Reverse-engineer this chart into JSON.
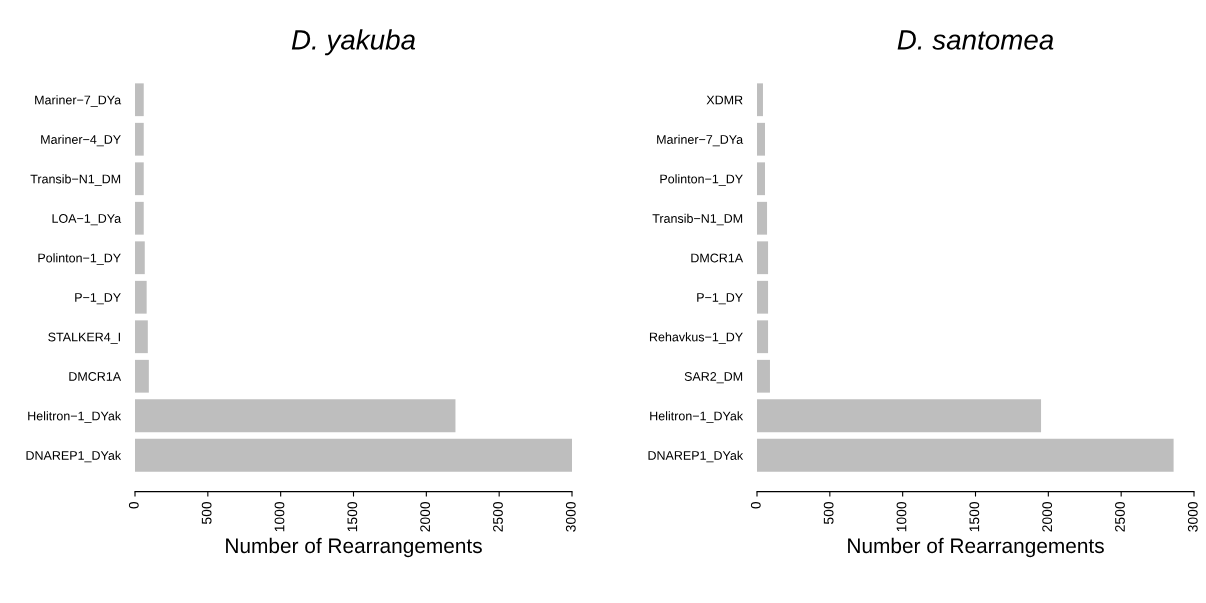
{
  "chart_data": [
    {
      "type": "bar",
      "orientation": "horizontal",
      "title": "D. yakuba",
      "xlabel": "Number of Rearrangements",
      "categories": [
        "Mariner−7_DYa",
        "Mariner−4_DY",
        "Transib−N1_DM",
        "LOA−1_DYa",
        "Polinton−1_DY",
        "P−1_DY",
        "STALKER4_I",
        "DMCR1A",
        "Helitron−1_DYak",
        "DNAREP1_DYak"
      ],
      "values": [
        60,
        60,
        60,
        60,
        67,
        80,
        88,
        95,
        2200,
        3000
      ],
      "color": "#bebebe",
      "xlim": [
        0,
        3000
      ],
      "xticks": [
        0,
        500,
        1000,
        1500,
        2000,
        2500,
        3000
      ],
      "grid": false
    },
    {
      "type": "bar",
      "orientation": "horizontal",
      "title": "D. santomea",
      "xlabel": "Number of Rearrangements",
      "categories": [
        "XDMR",
        "Mariner−7_DYa",
        "Polinton−1_DY",
        "Transib−N1_DM",
        "DMCR1A",
        "P−1_DY",
        "Rehavkus−1_DY",
        "SAR2_DM",
        "Helitron−1_DYak",
        "DNAREP1_DYak"
      ],
      "values": [
        41,
        55,
        55,
        69,
        76,
        76,
        76,
        89,
        1950,
        2860
      ],
      "color": "#bebebe",
      "xlim": [
        0,
        3000
      ],
      "xticks": [
        0,
        500,
        1000,
        1500,
        2000,
        2500,
        3000
      ],
      "grid": false
    }
  ]
}
